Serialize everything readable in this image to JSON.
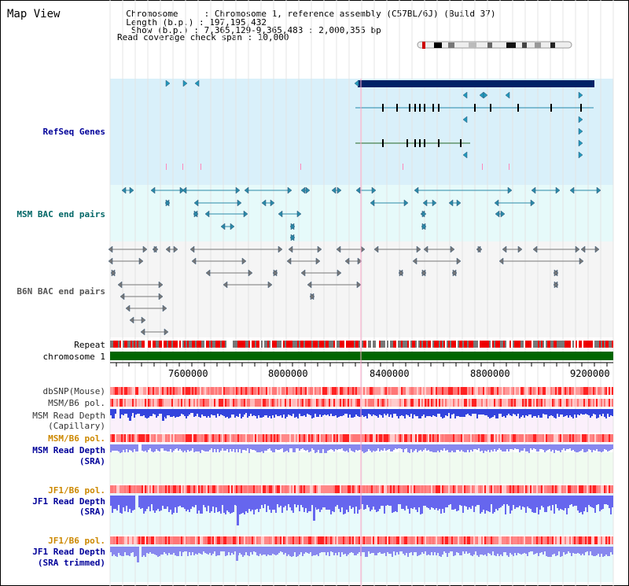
{
  "header": {
    "title": "Map View",
    "info_lines": [
      "  Chromosome     : Chromosome 1, reference assembly (C57BL/6J) (Build 37)",
      "  Length (b.p.) : 197,195,432",
      "   Show (b.p.) : 7,365,129-9,365,483 : 2,000,355 bp",
      "Read coverage check span : 10,000"
    ]
  },
  "tracks": {
    "refseq": "RefSeq Genes",
    "msm_bac": "MSM BAC end pairs",
    "b6n_bac": "B6N BAC end pairs",
    "repeat": "Repeat",
    "chromosome": "chromosome 1",
    "dbsnp": "dbSNP(Mouse)",
    "msm_b6_pol_1": "MSM/B6 pol.",
    "msm_read_depth_cap_1": "MSM Read Depth",
    "msm_read_depth_cap_2": "(Capillary)",
    "msm_b6_pol_2": "MSM/B6 pol.",
    "msm_read_depth_sra_1": "MSM Read Depth",
    "msm_read_depth_sra_2": "(SRA)",
    "jf1_b6_pol_1": "JF1/B6 pol.",
    "jf1_read_depth_1": "JF1 Read Depth",
    "jf1_read_depth_2": "(SRA)",
    "jf1_b6_pol_2": "JF1/B6 pol.",
    "jf1_read_depth_trim_1": "JF1 Read Depth",
    "jf1_read_depth_trim_2": "(SRA trimmed)"
  },
  "axis": {
    "ticks": [
      "7600000",
      "8000000",
      "8400000",
      "8800000",
      "9200000"
    ]
  },
  "colors": {
    "refseq_label": "#000099",
    "msm_bac_label": "#006666",
    "b6n_bac_label": "#555555",
    "pol_label": "#cc8800",
    "depth_label": "#000099",
    "refseq_bg": "#d9f0fa",
    "msm_bac_bg": "#e6fafa",
    "b6n_bac_bg": "#f5f5f5",
    "chromosome_bar": "#006600",
    "depth_bar": "#5555ee"
  }
}
